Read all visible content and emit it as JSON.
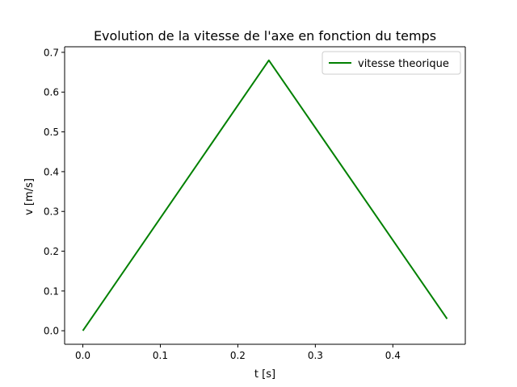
{
  "chart_data": {
    "type": "line",
    "title": "Evolution de la vitesse de l'axe en fonction du temps",
    "xlabel": "t [s]",
    "ylabel": "v [m/s]",
    "xlim": [
      -0.0235,
      0.4935
    ],
    "ylim": [
      -0.034,
      0.714
    ],
    "xticks": [
      0.0,
      0.1,
      0.2,
      0.3,
      0.4
    ],
    "xtick_labels": [
      "0.0",
      "0.1",
      "0.2",
      "0.3",
      "0.4"
    ],
    "yticks": [
      0.0,
      0.1,
      0.2,
      0.3,
      0.4,
      0.5,
      0.6,
      0.7
    ],
    "ytick_labels": [
      "0.0",
      "0.1",
      "0.2",
      "0.3",
      "0.4",
      "0.5",
      "0.6",
      "0.7"
    ],
    "grid": false,
    "legend_position": "top-right",
    "series": [
      {
        "name": "vitesse theorique",
        "color": "#008000",
        "x": [
          0.0,
          0.24,
          0.47
        ],
        "y": [
          0.0,
          0.68,
          0.03
        ]
      }
    ]
  }
}
